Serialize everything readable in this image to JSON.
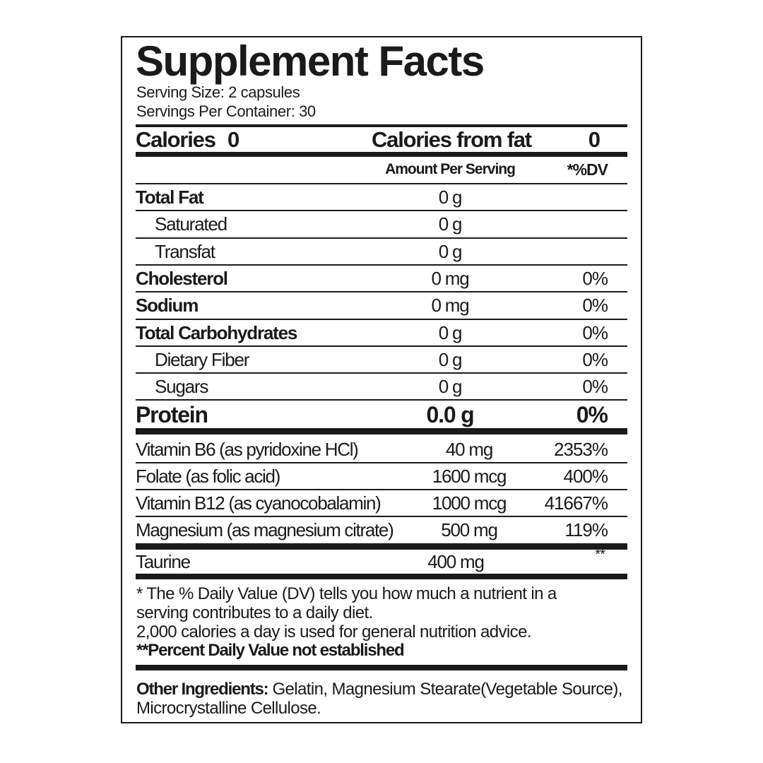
{
  "title": "Supplement Facts",
  "serving_size": "Serving Size: 2 capsules",
  "servings_per_container": "Servings Per Container: 30",
  "calories": {
    "label": "Calories",
    "value": "0",
    "from_fat_label": "Calories from fat",
    "from_fat_value": "0"
  },
  "header": {
    "amount": "Amount Per Serving",
    "dv": "*%DV"
  },
  "nutrients": [
    {
      "label": "Total Fat",
      "amount": "0 g",
      "dv": ""
    },
    {
      "label": "Saturated",
      "amount": "0 g",
      "dv": ""
    },
    {
      "label": "Transfat",
      "amount": "0 g",
      "dv": ""
    },
    {
      "label": "Cholesterol",
      "amount": "0 mg",
      "dv": "0%"
    },
    {
      "label": "Sodium",
      "amount": "0 mg",
      "dv": "0%"
    },
    {
      "label": "Total Carbohydrates",
      "amount": "0 g",
      "dv": "0%"
    },
    {
      "label": "Dietary Fiber",
      "amount": "0 g",
      "dv": "0%"
    },
    {
      "label": "Sugars",
      "amount": "0 g",
      "dv": "0%"
    }
  ],
  "protein": {
    "label": "Protein",
    "amount": "0.0 g",
    "dv": "0%"
  },
  "vitamins": [
    {
      "label": "Vitamin B6 (as pyridoxine HCl)",
      "amount": "40 mg",
      "dv": "2353%"
    },
    {
      "label": "Folate (as folic acid)",
      "amount": "1600 mcg",
      "dv": "400%"
    },
    {
      "label": "Vitamin B12 (as cyanocobalamin)",
      "amount": "1000 mcg",
      "dv": "41667%"
    },
    {
      "label": "Magnesium (as magnesium citrate)",
      "amount": "500 mg",
      "dv": "119%"
    }
  ],
  "taurine": {
    "label": "Taurine",
    "amount": "400 mg",
    "dv": "**"
  },
  "footnote": {
    "line1": "* The % Daily Value (DV) tells you how much a nutrient in a",
    "line2": "serving contributes to a daily diet.",
    "line3": "2,000 calories a day is used for general nutrition advice.",
    "line4": "**Percent Daily Value not established"
  },
  "other_ingredients": {
    "label": "Other Ingredients:",
    "line1": " Gelatin, Magnesium Stearate(Vegetable Source),",
    "line2": "Microcrystalline Cellulose."
  }
}
